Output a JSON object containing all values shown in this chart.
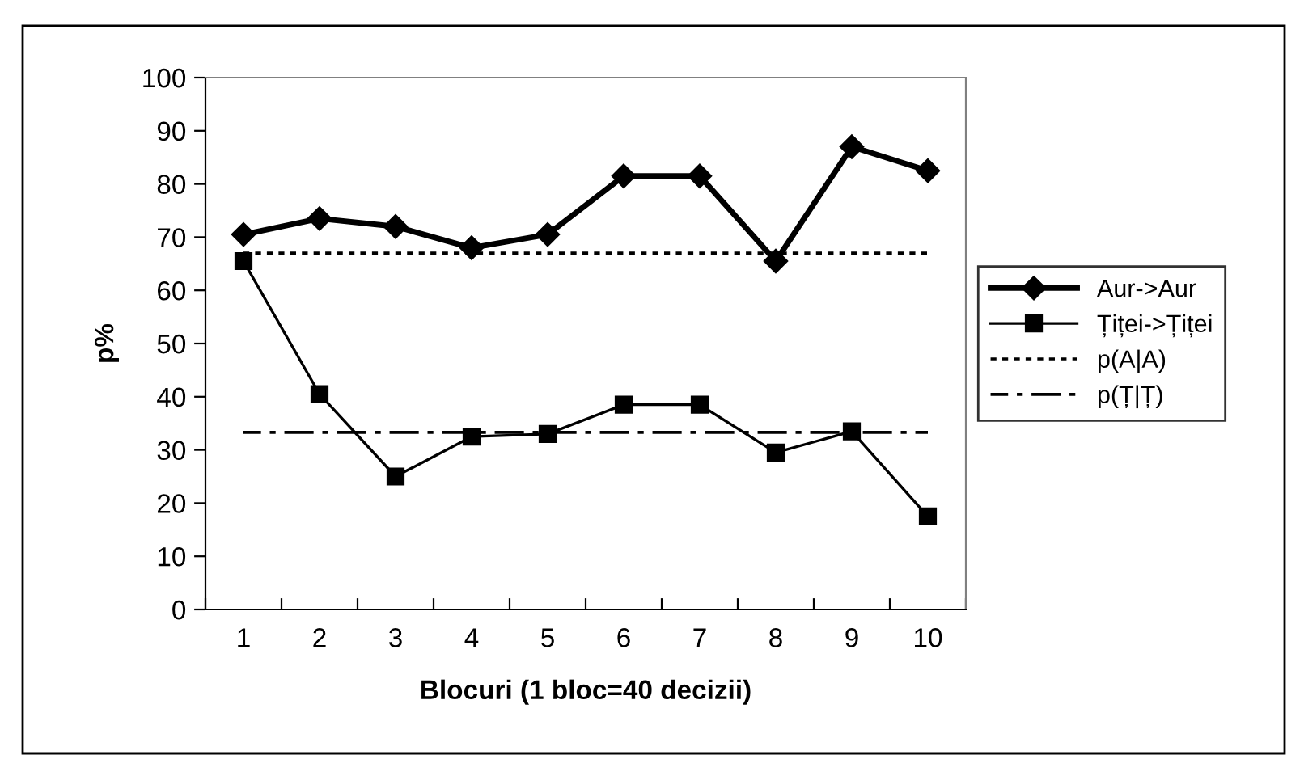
{
  "chart_data": {
    "type": "line",
    "xlabel": "Blocuri (1 bloc=40 decizii)",
    "ylabel": "p%",
    "categories": [
      "1",
      "2",
      "3",
      "4",
      "5",
      "6",
      "7",
      "8",
      "9",
      "10"
    ],
    "series": [
      {
        "name": "Aur->Aur",
        "color": "#000000",
        "marker": "diamond",
        "line_style": "solid",
        "values": [
          70.5,
          73.5,
          72,
          68,
          70.5,
          81.5,
          81.5,
          65.5,
          87,
          82.5
        ]
      },
      {
        "name": "Țiței->Țiței",
        "color": "#000000",
        "marker": "square",
        "line_style": "solid",
        "values": [
          65.5,
          40.5,
          25,
          32.5,
          33,
          38.5,
          38.5,
          29.5,
          33.5,
          17.5
        ]
      },
      {
        "name": "p(A|A)",
        "color": "#000000",
        "marker": "none",
        "line_style": "dotted",
        "values": [
          67,
          67,
          67,
          67,
          67,
          67,
          67,
          67,
          67,
          67
        ]
      },
      {
        "name": "p(Ț|Ț)",
        "color": "#000000",
        "marker": "none",
        "line_style": "dashdot",
        "values": [
          33.3,
          33.3,
          33.3,
          33.3,
          33.3,
          33.3,
          33.3,
          33.3,
          33.3,
          33.3
        ]
      }
    ],
    "ylim": [
      0,
      100
    ],
    "yticks": [
      0,
      10,
      20,
      30,
      40,
      50,
      60,
      70,
      80,
      90,
      100
    ],
    "grid": false,
    "legend": "right"
  }
}
